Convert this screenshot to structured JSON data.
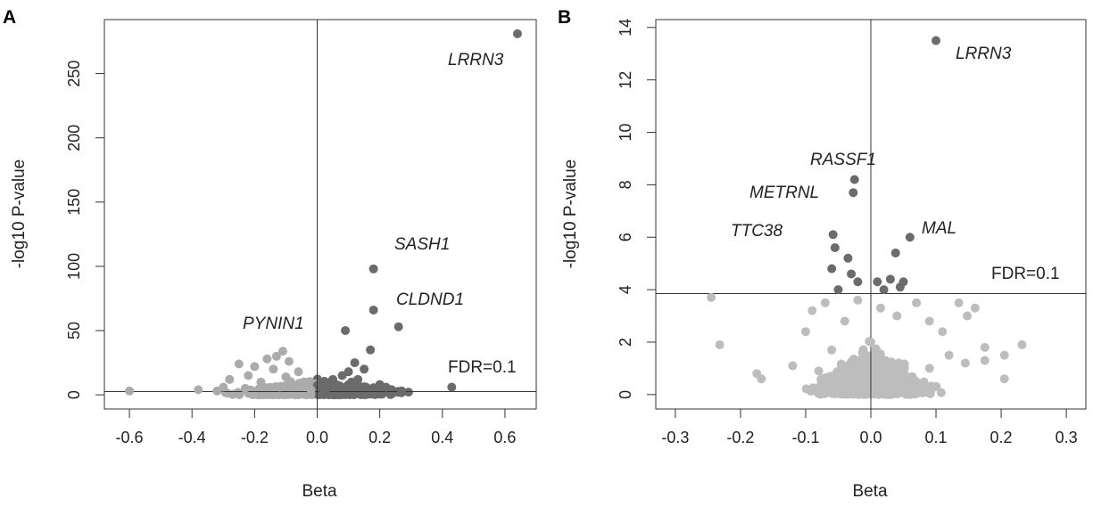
{
  "chart_data": [
    {
      "panel": "A",
      "type": "scatter",
      "xlabel": "Beta",
      "ylabel": "-log10 P-value",
      "xlim": [
        -0.68,
        0.7
      ],
      "ylim": [
        -11,
        292
      ],
      "xticks": [
        "-0.6",
        "-0.4",
        "-0.2",
        "0.0",
        "0.2",
        "0.4",
        "0.6"
      ],
      "xtick_values": [
        -0.6,
        -0.4,
        -0.2,
        0.0,
        0.2,
        0.4,
        0.6
      ],
      "yticks": [
        "0",
        "50",
        "100",
        "150",
        "200",
        "250"
      ],
      "ytick_values": [
        0,
        50,
        100,
        150,
        200,
        250
      ],
      "vline_x": 0.0,
      "fdr_threshold": 2.5,
      "fdr_label": "FDR=0.1",
      "colors": {
        "significant": "#6b6b6b",
        "nonsignificant": "#ababab"
      },
      "points": [
        [
          0.64,
          281
        ],
        [
          0.18,
          98
        ],
        [
          0.18,
          66
        ],
        [
          0.26,
          53
        ],
        [
          0.09,
          50
        ],
        [
          0.17,
          35
        ],
        [
          0.12,
          25
        ],
        [
          0.15,
          20
        ],
        [
          0.1,
          18
        ],
        [
          0.08,
          15
        ],
        [
          0.05,
          12
        ],
        [
          0.13,
          12
        ],
        [
          0.2,
          8
        ],
        [
          0.22,
          6
        ],
        [
          0.27,
          3
        ],
        [
          0.43,
          6
        ],
        [
          0.06,
          8
        ],
        [
          0.03,
          5
        ],
        [
          0.02,
          3
        ],
        [
          0.11,
          10
        ],
        [
          -0.11,
          34
        ],
        [
          -0.13,
          30
        ],
        [
          -0.16,
          28
        ],
        [
          -0.09,
          26
        ],
        [
          -0.25,
          24
        ],
        [
          -0.2,
          22
        ],
        [
          -0.14,
          20
        ],
        [
          -0.06,
          18
        ],
        [
          -0.22,
          15
        ],
        [
          -0.1,
          14
        ],
        [
          -0.28,
          12
        ],
        [
          -0.18,
          10
        ],
        [
          -0.04,
          8
        ],
        [
          -0.3,
          6
        ],
        [
          -0.23,
          5
        ],
        [
          -0.32,
          3
        ],
        [
          -0.38,
          4
        ],
        [
          -0.6,
          3
        ],
        [
          -0.12,
          6
        ],
        [
          -0.02,
          4
        ]
      ],
      "labels": [
        {
          "text": "LRRN3",
          "x": 0.64,
          "y": 281
        },
        {
          "text": "SASH1",
          "x": 0.18,
          "y": 98
        },
        {
          "text": "CLDND1",
          "x": 0.18,
          "y": 66
        },
        {
          "text": "PYNIN1",
          "x": -0.11,
          "y": 34
        }
      ]
    },
    {
      "panel": "B",
      "type": "scatter",
      "xlabel": "Beta",
      "ylabel": "-log10 P-value",
      "xlim": [
        -0.33,
        0.33
      ],
      "ylim": [
        -0.55,
        14.3
      ],
      "xticks": [
        "-0.3",
        "-0.2",
        "-0.1",
        "0.0",
        "0.1",
        "0.2",
        "0.3"
      ],
      "xtick_values": [
        -0.3,
        -0.2,
        -0.1,
        0.0,
        0.1,
        0.2,
        0.3
      ],
      "yticks": [
        "0",
        "2",
        "4",
        "6",
        "8",
        "10",
        "12",
        "14"
      ],
      "ytick_values": [
        0,
        2,
        4,
        6,
        8,
        10,
        12,
        14
      ],
      "vline_x": 0.0,
      "fdr_threshold": 3.85,
      "fdr_label": "FDR=0.1",
      "colors": {
        "significant": "#6b6b6b",
        "nonsignificant": "#bdbdbd"
      },
      "points": [
        [
          0.1,
          13.5
        ],
        [
          -0.025,
          8.2
        ],
        [
          -0.027,
          7.7
        ],
        [
          -0.058,
          6.1
        ],
        [
          0.06,
          6.0
        ],
        [
          0.038,
          5.4
        ],
        [
          -0.055,
          5.6
        ],
        [
          -0.035,
          5.2
        ],
        [
          -0.03,
          4.6
        ],
        [
          -0.06,
          4.8
        ],
        [
          -0.05,
          4.0
        ],
        [
          -0.02,
          4.3
        ],
        [
          0.01,
          4.3
        ],
        [
          0.03,
          4.4
        ],
        [
          0.05,
          4.3
        ],
        [
          0.02,
          4.0
        ],
        [
          0.045,
          4.1
        ],
        [
          -0.245,
          3.7
        ],
        [
          -0.232,
          1.9
        ],
        [
          -0.175,
          0.8
        ],
        [
          -0.168,
          0.6
        ],
        [
          -0.12,
          1.1
        ],
        [
          -0.1,
          2.4
        ],
        [
          -0.09,
          3.2
        ],
        [
          -0.07,
          3.5
        ],
        [
          -0.04,
          2.8
        ],
        [
          -0.02,
          3.6
        ],
        [
          0.0,
          2.0
        ],
        [
          0.015,
          3.3
        ],
        [
          0.04,
          3.0
        ],
        [
          0.07,
          3.5
        ],
        [
          0.09,
          2.8
        ],
        [
          0.11,
          2.4
        ],
        [
          0.135,
          3.5
        ],
        [
          0.148,
          3.0
        ],
        [
          0.16,
          3.3
        ],
        [
          0.12,
          1.5
        ],
        [
          0.145,
          1.2
        ],
        [
          0.175,
          1.8
        ],
        [
          0.205,
          1.5
        ],
        [
          0.175,
          1.3
        ],
        [
          0.232,
          1.9
        ],
        [
          0.205,
          0.6
        ],
        [
          0.09,
          1.0
        ],
        [
          -0.06,
          1.7
        ],
        [
          -0.08,
          0.9
        ]
      ],
      "labels": [
        {
          "text": "LRRN3",
          "x": 0.1,
          "y": 13.5
        },
        {
          "text": "RASSF1",
          "x": -0.025,
          "y": 8.2
        },
        {
          "text": "METRNL",
          "x": -0.027,
          "y": 7.7
        },
        {
          "text": "MAL",
          "x": 0.06,
          "y": 6.0
        },
        {
          "text": "TTC38",
          "x": -0.058,
          "y": 6.1
        }
      ]
    }
  ]
}
